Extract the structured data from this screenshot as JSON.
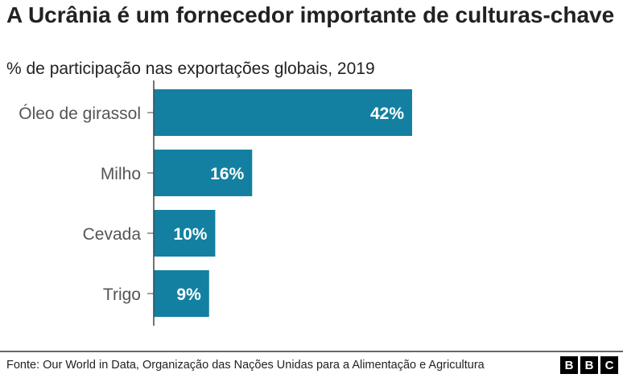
{
  "chart_data": {
    "type": "bar",
    "orientation": "horizontal",
    "title": "A Ucrânia é um fornecedor importante de culturas-chave",
    "subtitle": "% de participação nas exportações globais, 2019",
    "categories": [
      "Óleo de girassol",
      "Milho",
      "Cevada",
      "Trigo"
    ],
    "values": [
      42,
      16,
      10,
      9
    ],
    "data_labels": [
      "42%",
      "16%",
      "10%",
      "9%"
    ],
    "xlim": [
      0,
      42
    ],
    "grid": false,
    "bar_color": "#1380A1"
  },
  "source": "Fonte: Our World in Data, Organização das Nações Unidas para a Alimentação e Agricultura",
  "logo": [
    "B",
    "B",
    "C"
  ]
}
